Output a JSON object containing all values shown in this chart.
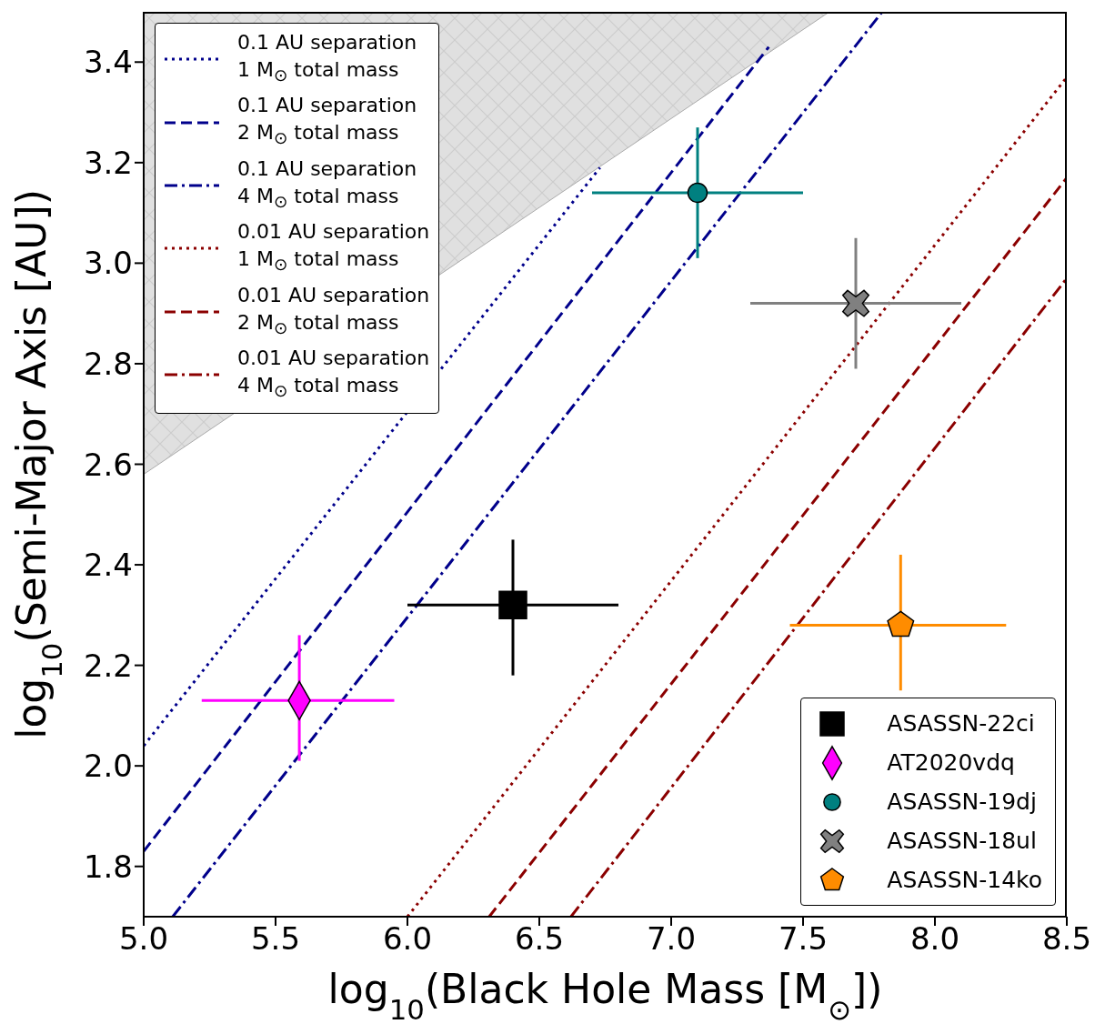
{
  "chart_data": {
    "type": "scatter",
    "xlabel": "log$_{10}$(Black Hole Mass [M$_{⊙}$])",
    "ylabel": "log$_{10}$(Semi-Major Axis [AU])",
    "xlim": [
      5.0,
      8.5
    ],
    "ylim": [
      1.7,
      3.5
    ],
    "xticks": [
      {
        "value": 5,
        "label": "5.0"
      },
      {
        "value": 5.5,
        "label": "5.5"
      },
      {
        "value": 6,
        "label": "6.0"
      },
      {
        "value": 6.5,
        "label": "6.5"
      },
      {
        "value": 7,
        "label": "7.0"
      },
      {
        "value": 7.5,
        "label": "7.5"
      },
      {
        "value": 8,
        "label": "8.0"
      },
      {
        "value": 8.5,
        "label": "8.5"
      }
    ],
    "yticks": [
      {
        "value": 1.8,
        "label": "1.8"
      },
      {
        "value": 2,
        "label": "2.0"
      },
      {
        "value": 2.2,
        "label": "2.2"
      },
      {
        "value": 2.4,
        "label": "2.4"
      },
      {
        "value": 2.6,
        "label": "2.6"
      },
      {
        "value": 2.8,
        "label": "2.8"
      },
      {
        "value": 3,
        "label": "3.0"
      },
      {
        "value": 3.2,
        "label": "3.2"
      },
      {
        "value": 3.4,
        "label": "3.4"
      }
    ],
    "legend": "top left",
    "series": [
      {
        "type": "area",
        "color": "#cccccc",
        "x": [
          5.0,
          7.6
        ],
        "values": [
          2.58,
          3.5
        ]
      },
      {
        "name": "0.1 AU separation\n1 M$_{⊙}$ total mass",
        "type": "line",
        "line_style": "dotted",
        "color": "#00008b",
        "x": [
          5.0,
          6.73
        ],
        "values": [
          2.04,
          3.19
        ]
      },
      {
        "name": "0.1 AU separation\n2 M$_{⊙}$ total mass",
        "type": "line",
        "line_style": "dashed",
        "color": "#00008b",
        "x": [
          5.0,
          7.37
        ],
        "values": [
          1.83,
          3.43
        ]
      },
      {
        "name": "0.1 AU separation\n4 M$_{⊙}$ total mass",
        "type": "line",
        "line_style": "dashdot",
        "color": "#00008b",
        "x": [
          5.11,
          7.8
        ],
        "values": [
          1.7,
          3.5
        ]
      },
      {
        "name": "0.01 AU separation\n1 M$_{⊙}$ total mass",
        "type": "line",
        "line_style": "dotted",
        "color": "#8b0000",
        "x": [
          6.0,
          8.5
        ],
        "values": [
          1.7,
          3.37
        ]
      },
      {
        "name": "0.01 AU separation\n2 M$_{⊙}$ total mass",
        "type": "line",
        "line_style": "dashed",
        "color": "#8b0000",
        "x": [
          6.31,
          8.5
        ],
        "values": [
          1.7,
          3.17
        ]
      },
      {
        "name": "0.01 AU separation\n4 M$_{⊙}$ total mass",
        "type": "line",
        "line_style": "dashdot",
        "color": "#8b0000",
        "x": [
          6.62,
          8.5
        ],
        "values": [
          1.7,
          2.97
        ]
      },
      {
        "name": "ASASSN-22ci",
        "marker": "square",
        "color": "#000000",
        "x": [
          6.4
        ],
        "values": [
          2.32
        ],
        "xerrors": [
          [
            6.0,
            6.8
          ]
        ],
        "errors": [
          [
            2.18,
            2.45
          ]
        ]
      },
      {
        "name": "AT2020vdq",
        "marker": "diamond",
        "color": "#ff00ff",
        "x": [
          5.59
        ],
        "values": [
          2.13
        ],
        "xerrors": [
          [
            5.22,
            5.95
          ]
        ],
        "errors": [
          [
            2.01,
            2.26
          ]
        ]
      },
      {
        "name": "ASASSN-19dj",
        "marker": "circle",
        "color": "#008080",
        "x": [
          7.1
        ],
        "values": [
          3.14
        ],
        "xerrors": [
          [
            6.7,
            7.5
          ]
        ],
        "errors": [
          [
            3.01,
            3.27
          ]
        ]
      },
      {
        "name": "ASASSN-18ul",
        "marker": "cross",
        "color": "#808080",
        "x": [
          7.7
        ],
        "values": [
          2.92
        ],
        "xerrors": [
          [
            7.3,
            8.1
          ]
        ],
        "errors": [
          [
            2.79,
            3.05
          ]
        ]
      },
      {
        "name": "ASASSN-14ko",
        "color": "#ff8c00",
        "x": [
          7.87
        ],
        "values": [
          2.28
        ],
        "xerrors": [
          [
            7.45,
            8.27
          ]
        ],
        "errors": [
          [
            2.15,
            2.42
          ]
        ]
      }
    ]
  }
}
